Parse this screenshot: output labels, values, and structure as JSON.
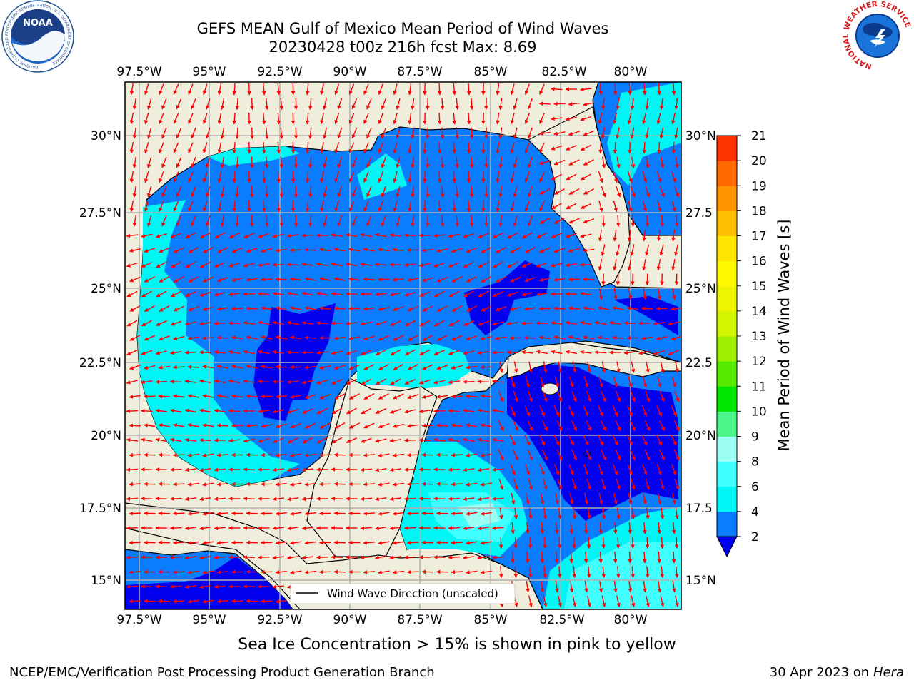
{
  "title": {
    "line1": "GEFS MEAN Gulf of Mexico Mean Period of Wind Waves",
    "line2": "20230428 t00z 216h fcst   Max: 8.69"
  },
  "logos": {
    "noaa": "NOAA",
    "noaa_ring": "NATIONAL OCEANIC AND ATMOSPHERIC ADMINISTRATION · U.S. DEPARTMENT OF COMMERCE",
    "nws_ring": "NATIONAL WEATHER SERVICE"
  },
  "map": {
    "lon_ticks": [
      "97.5°W",
      "95°W",
      "92.5°W",
      "90°W",
      "87.5°W",
      "85°W",
      "82.5°W",
      "80°W"
    ],
    "lat_ticks": [
      "30°N",
      "27.5°N",
      "25°N",
      "22.5°N",
      "20°N",
      "17.5°N",
      "15°N"
    ],
    "lat_ticks_right": [
      "30°N",
      "27.5",
      "25°N",
      "22.5",
      "20°N",
      "17.5",
      "15°N"
    ],
    "lon_range": [
      -98,
      -78
    ],
    "lat_range": [
      14,
      31.7
    ],
    "legend_label": "Wind Wave Direction (unscaled)",
    "colors": {
      "land": "#efeddc",
      "wave_2_4": "#0a7dff",
      "wave_lt_2": "#0000ee",
      "wave_4_6": "#00f5f5",
      "wave_6_8": "#40ffff",
      "wave_8_9": "#9dfff3",
      "arrow": "#ff0000",
      "grid": "#b0b0b0"
    }
  },
  "colorbar": {
    "label": "Mean Period of Wind Waves [s]",
    "ticks": [
      "2",
      "4",
      "6",
      "8",
      "9",
      "10",
      "11",
      "12",
      "13",
      "14",
      "15",
      "16",
      "17",
      "18",
      "19",
      "20",
      "21"
    ],
    "colors": [
      "#0a7dff",
      "#00f5f5",
      "#40ffff",
      "#9dfff3",
      "#4bf58a",
      "#00e600",
      "#55ea00",
      "#9ef000",
      "#d2f500",
      "#eef500",
      "#fffa00",
      "#ffe500",
      "#ffbf00",
      "#ff9400",
      "#ff6a00",
      "#ff3300",
      "#ff0000"
    ],
    "extend_color": "#0000ee"
  },
  "footer": {
    "ice_note": "Sea Ice Concentration > 15% is shown in pink to yellow",
    "credit": "NCEP/EMC/Verification Post Processing Product Generation Branch",
    "date": "30 Apr 2023 on",
    "host": "Hera"
  }
}
